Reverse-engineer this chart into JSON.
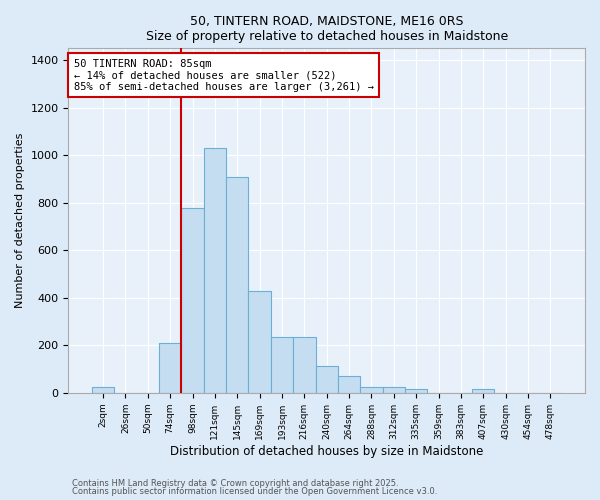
{
  "title": "50, TINTERN ROAD, MAIDSTONE, ME16 0RS",
  "subtitle": "Size of property relative to detached houses in Maidstone",
  "xlabel": "Distribution of detached houses by size in Maidstone",
  "ylabel": "Number of detached properties",
  "bar_color": "#c5ddf0",
  "bar_edge_color": "#6baed6",
  "background_color": "#e8f1fa",
  "grid_color": "#ffffff",
  "annotation_box_color": "#cc0000",
  "vline_color": "#cc0000",
  "categories": [
    "2sqm",
    "26sqm",
    "50sqm",
    "74sqm",
    "98sqm",
    "121sqm",
    "145sqm",
    "169sqm",
    "193sqm",
    "216sqm",
    "240sqm",
    "264sqm",
    "288sqm",
    "312sqm",
    "335sqm",
    "359sqm",
    "383sqm",
    "407sqm",
    "430sqm",
    "454sqm",
    "478sqm"
  ],
  "values": [
    25,
    0,
    0,
    210,
    780,
    1030,
    910,
    430,
    235,
    235,
    115,
    70,
    25,
    25,
    15,
    0,
    0,
    15,
    0,
    0,
    0
  ],
  "ylim": [
    0,
    1450
  ],
  "yticks": [
    0,
    200,
    400,
    600,
    800,
    1000,
    1200,
    1400
  ],
  "vline_x_index": 4,
  "annotation_text": "50 TINTERN ROAD: 85sqm\n← 14% of detached houses are smaller (522)\n85% of semi-detached houses are larger (3,261) →",
  "footnote1": "Contains HM Land Registry data © Crown copyright and database right 2025.",
  "footnote2": "Contains public sector information licensed under the Open Government Licence v3.0."
}
